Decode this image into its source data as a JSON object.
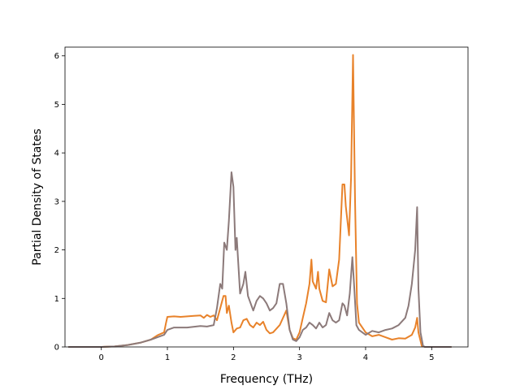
{
  "chart_data": {
    "type": "line",
    "title": "",
    "xlabel": "Frequency (THz)",
    "ylabel": "Partial Density of States",
    "xlim": [
      -0.55,
      5.55
    ],
    "ylim": [
      0,
      6.18
    ],
    "xticks": [
      0,
      1,
      2,
      3,
      4,
      5
    ],
    "yticks": [
      0,
      1,
      2,
      3,
      4,
      5,
      6
    ],
    "grid": false,
    "legend": "none",
    "series": [
      {
        "color": "#e8822a",
        "points": [
          [
            -0.5,
            0
          ],
          [
            -0.3,
            0
          ],
          [
            0.0,
            0.0
          ],
          [
            0.2,
            0.01
          ],
          [
            0.4,
            0.04
          ],
          [
            0.6,
            0.09
          ],
          [
            0.75,
            0.15
          ],
          [
            0.85,
            0.24
          ],
          [
            0.95,
            0.3
          ],
          [
            0.98,
            0.5
          ],
          [
            1.0,
            0.62
          ],
          [
            1.1,
            0.63
          ],
          [
            1.2,
            0.62
          ],
          [
            1.3,
            0.63
          ],
          [
            1.4,
            0.64
          ],
          [
            1.5,
            0.65
          ],
          [
            1.55,
            0.6
          ],
          [
            1.6,
            0.66
          ],
          [
            1.65,
            0.62
          ],
          [
            1.7,
            0.65
          ],
          [
            1.75,
            0.55
          ],
          [
            1.8,
            0.8
          ],
          [
            1.85,
            1.05
          ],
          [
            1.88,
            1.05
          ],
          [
            1.9,
            0.7
          ],
          [
            1.93,
            0.85
          ],
          [
            1.97,
            0.5
          ],
          [
            2.0,
            0.3
          ],
          [
            2.05,
            0.38
          ],
          [
            2.1,
            0.4
          ],
          [
            2.15,
            0.55
          ],
          [
            2.2,
            0.58
          ],
          [
            2.25,
            0.45
          ],
          [
            2.3,
            0.4
          ],
          [
            2.35,
            0.5
          ],
          [
            2.4,
            0.45
          ],
          [
            2.45,
            0.52
          ],
          [
            2.5,
            0.35
          ],
          [
            2.55,
            0.28
          ],
          [
            2.6,
            0.3
          ],
          [
            2.7,
            0.45
          ],
          [
            2.8,
            0.75
          ],
          [
            2.85,
            0.35
          ],
          [
            2.9,
            0.18
          ],
          [
            2.95,
            0.15
          ],
          [
            3.0,
            0.3
          ],
          [
            3.05,
            0.6
          ],
          [
            3.1,
            0.9
          ],
          [
            3.15,
            1.3
          ],
          [
            3.18,
            1.8
          ],
          [
            3.2,
            1.35
          ],
          [
            3.25,
            1.2
          ],
          [
            3.28,
            1.55
          ],
          [
            3.3,
            1.2
          ],
          [
            3.35,
            0.95
          ],
          [
            3.4,
            0.92
          ],
          [
            3.45,
            1.6
          ],
          [
            3.5,
            1.25
          ],
          [
            3.55,
            1.3
          ],
          [
            3.6,
            1.8
          ],
          [
            3.65,
            3.35
          ],
          [
            3.68,
            3.35
          ],
          [
            3.7,
            2.9
          ],
          [
            3.75,
            2.3
          ],
          [
            3.78,
            3.5
          ],
          [
            3.81,
            6.02
          ],
          [
            3.84,
            3.0
          ],
          [
            3.87,
            0.9
          ],
          [
            3.9,
            0.5
          ],
          [
            4.0,
            0.3
          ],
          [
            4.1,
            0.22
          ],
          [
            4.2,
            0.25
          ],
          [
            4.3,
            0.2
          ],
          [
            4.4,
            0.15
          ],
          [
            4.5,
            0.18
          ],
          [
            4.6,
            0.17
          ],
          [
            4.7,
            0.25
          ],
          [
            4.75,
            0.4
          ],
          [
            4.78,
            0.6
          ],
          [
            4.8,
            0.3
          ],
          [
            4.85,
            0.02
          ],
          [
            4.9,
            0
          ],
          [
            5.3,
            0
          ]
        ]
      },
      {
        "color": "#8c7a7a",
        "points": [
          [
            -0.5,
            0
          ],
          [
            -0.3,
            0
          ],
          [
            0.0,
            0.0
          ],
          [
            0.2,
            0.01
          ],
          [
            0.4,
            0.04
          ],
          [
            0.6,
            0.09
          ],
          [
            0.75,
            0.15
          ],
          [
            0.85,
            0.2
          ],
          [
            0.95,
            0.25
          ],
          [
            1.0,
            0.35
          ],
          [
            1.1,
            0.4
          ],
          [
            1.3,
            0.4
          ],
          [
            1.5,
            0.43
          ],
          [
            1.6,
            0.42
          ],
          [
            1.7,
            0.45
          ],
          [
            1.75,
            0.8
          ],
          [
            1.8,
            1.3
          ],
          [
            1.83,
            1.2
          ],
          [
            1.86,
            2.15
          ],
          [
            1.9,
            2.0
          ],
          [
            1.93,
            2.6
          ],
          [
            1.97,
            3.6
          ],
          [
            2.0,
            3.3
          ],
          [
            2.03,
            2.0
          ],
          [
            2.05,
            2.25
          ],
          [
            2.1,
            1.1
          ],
          [
            2.15,
            1.3
          ],
          [
            2.18,
            1.55
          ],
          [
            2.22,
            1.05
          ],
          [
            2.3,
            0.75
          ],
          [
            2.35,
            0.95
          ],
          [
            2.4,
            1.05
          ],
          [
            2.45,
            1.0
          ],
          [
            2.5,
            0.9
          ],
          [
            2.55,
            0.75
          ],
          [
            2.6,
            0.8
          ],
          [
            2.65,
            0.9
          ],
          [
            2.7,
            1.3
          ],
          [
            2.75,
            1.3
          ],
          [
            2.8,
            0.9
          ],
          [
            2.85,
            0.35
          ],
          [
            2.9,
            0.15
          ],
          [
            2.95,
            0.12
          ],
          [
            3.0,
            0.2
          ],
          [
            3.05,
            0.35
          ],
          [
            3.1,
            0.4
          ],
          [
            3.15,
            0.5
          ],
          [
            3.2,
            0.45
          ],
          [
            3.25,
            0.38
          ],
          [
            3.3,
            0.5
          ],
          [
            3.35,
            0.4
          ],
          [
            3.4,
            0.45
          ],
          [
            3.45,
            0.7
          ],
          [
            3.5,
            0.55
          ],
          [
            3.55,
            0.5
          ],
          [
            3.6,
            0.55
          ],
          [
            3.65,
            0.9
          ],
          [
            3.68,
            0.85
          ],
          [
            3.72,
            0.65
          ],
          [
            3.76,
            1.1
          ],
          [
            3.8,
            1.85
          ],
          [
            3.83,
            1.2
          ],
          [
            3.86,
            0.45
          ],
          [
            3.9,
            0.35
          ],
          [
            4.0,
            0.25
          ],
          [
            4.1,
            0.33
          ],
          [
            4.2,
            0.3
          ],
          [
            4.3,
            0.35
          ],
          [
            4.4,
            0.38
          ],
          [
            4.5,
            0.45
          ],
          [
            4.6,
            0.6
          ],
          [
            4.65,
            0.85
          ],
          [
            4.7,
            1.3
          ],
          [
            4.75,
            2.0
          ],
          [
            4.78,
            2.88
          ],
          [
            4.8,
            1.2
          ],
          [
            4.83,
            0.3
          ],
          [
            4.87,
            0.02
          ],
          [
            4.9,
            0
          ],
          [
            5.3,
            0
          ]
        ]
      }
    ]
  }
}
